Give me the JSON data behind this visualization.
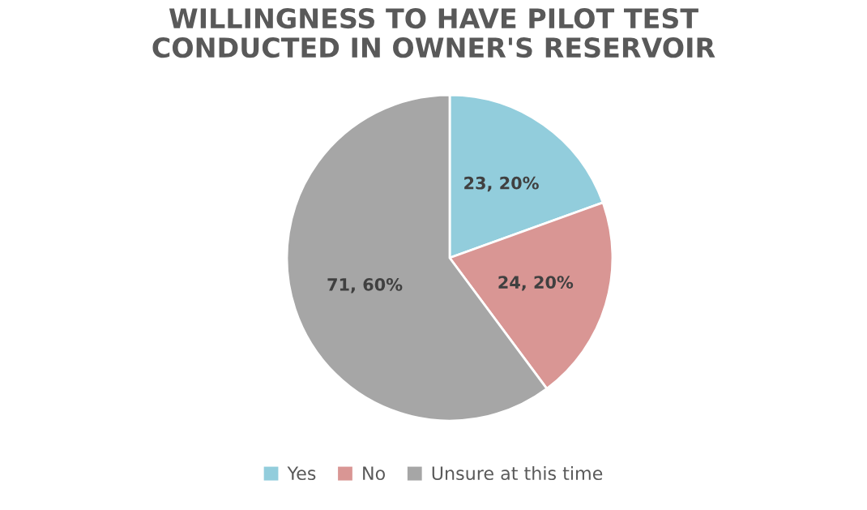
{
  "chart_data": {
    "type": "pie",
    "title": "WILLINGNESS TO HAVE PILOT TEST\nCONDUCTED IN OWNER'S RESERVOIR",
    "categories": [
      "Yes",
      "No",
      "Unsure at this time"
    ],
    "values": [
      23,
      24,
      71
    ],
    "colors": [
      "#92cddc",
      "#d99694",
      "#a6a6a6"
    ],
    "value_labels": [
      "23, 20%",
      "24, 20%",
      "71, 60%"
    ],
    "legend": "bottom"
  }
}
